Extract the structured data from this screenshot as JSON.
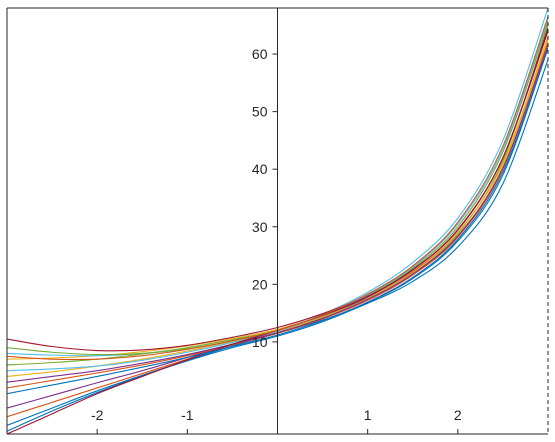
{
  "chart_data": {
    "type": "line",
    "title": "",
    "xlabel": "",
    "ylabel": "",
    "xlim": [
      -3,
      3
    ],
    "ylim": [
      -6,
      68
    ],
    "grid": false,
    "legend": "none",
    "axes_location": "origin",
    "x_ticks": [
      {
        "value": -2,
        "label": "-2"
      },
      {
        "value": -1,
        "label": "-1"
      },
      {
        "value": 1,
        "label": "1"
      },
      {
        "value": 2,
        "label": "2"
      }
    ],
    "y_ticks": [
      {
        "value": 10,
        "label": "10"
      },
      {
        "value": 20,
        "label": "20"
      },
      {
        "value": 30,
        "label": "30"
      },
      {
        "value": 40,
        "label": "40"
      },
      {
        "value": 50,
        "label": "50"
      },
      {
        "value": 60,
        "label": "60"
      }
    ],
    "x": [
      -3,
      -2.5,
      -2,
      -1.5,
      -1,
      -0.5,
      0,
      0.5,
      1,
      1.5,
      2,
      2.5,
      3
    ],
    "series": [
      {
        "color": "#0072bd",
        "values": [
          -5.5,
          -2.0,
          1.2,
          4.1,
          6.7,
          9.0,
          11.0,
          13.5,
          16.8,
          21.0,
          27.5,
          39.0,
          61.0
        ]
      },
      {
        "color": "#d95319",
        "values": [
          -3.0,
          -0.5,
          2.0,
          4.5,
          7.0,
          9.5,
          11.5,
          14.2,
          17.6,
          22.2,
          29.0,
          41.0,
          63.0
        ]
      },
      {
        "color": "#edb120",
        "values": [
          7.0,
          7.2,
          7.6,
          8.3,
          9.3,
          10.6,
          12.2,
          14.6,
          17.7,
          22.0,
          28.5,
          40.5,
          62.5
        ]
      },
      {
        "color": "#7e2f8e",
        "values": [
          -1.5,
          0.7,
          2.9,
          5.0,
          7.3,
          9.6,
          11.8,
          14.4,
          17.8,
          22.5,
          29.5,
          42.0,
          64.0
        ]
      },
      {
        "color": "#77ac30",
        "values": [
          6.0,
          6.4,
          7.0,
          7.9,
          9.0,
          10.4,
          12.0,
          14.4,
          17.5,
          22.0,
          28.8,
          41.5,
          65.0
        ]
      },
      {
        "color": "#4dbeee",
        "values": [
          8.0,
          7.7,
          7.6,
          8.0,
          8.8,
          10.1,
          11.8,
          14.8,
          18.6,
          23.8,
          31.5,
          45.0,
          68.0
        ]
      },
      {
        "color": "#a2142f",
        "values": [
          10.5,
          9.2,
          8.5,
          8.6,
          9.4,
          10.8,
          12.5,
          14.9,
          18.1,
          22.6,
          29.4,
          42.0,
          64.5
        ]
      },
      {
        "color": "#0072bd",
        "values": [
          -4.5,
          -1.5,
          1.5,
          4.2,
          6.8,
          9.3,
          11.5,
          13.8,
          16.7,
          20.5,
          26.5,
          37.5,
          59.0
        ]
      },
      {
        "color": "#d95319",
        "values": [
          2.0,
          3.3,
          4.6,
          6.0,
          7.6,
          9.5,
          11.5,
          14.0,
          17.2,
          21.6,
          28.2,
          40.0,
          62.0
        ]
      },
      {
        "color": "#edb120",
        "values": [
          4.0,
          4.8,
          5.8,
          7.0,
          8.4,
          10.0,
          11.8,
          14.3,
          17.5,
          22.0,
          29.0,
          41.0,
          63.0
        ]
      },
      {
        "color": "#7e2f8e",
        "values": [
          3.0,
          4.0,
          5.0,
          6.3,
          7.8,
          9.6,
          11.6,
          14.1,
          17.4,
          21.8,
          28.4,
          40.2,
          61.5
        ]
      },
      {
        "color": "#77ac30",
        "values": [
          9.0,
          8.2,
          7.8,
          8.0,
          8.8,
          10.2,
          12.0,
          14.6,
          18.0,
          22.8,
          30.0,
          43.0,
          65.5
        ]
      },
      {
        "color": "#4dbeee",
        "values": [
          5.0,
          5.3,
          5.8,
          6.8,
          8.2,
          9.9,
          11.9,
          14.6,
          18.2,
          23.0,
          30.5,
          43.5,
          66.0
        ]
      },
      {
        "color": "#a2142f",
        "values": [
          -6.0,
          -2.5,
          1.0,
          4.0,
          6.9,
          9.6,
          12.0,
          14.6,
          17.9,
          22.5,
          29.5,
          42.0,
          64.0
        ]
      },
      {
        "color": "#0072bd",
        "values": [
          1.0,
          2.5,
          4.0,
          5.6,
          7.3,
          9.2,
          11.2,
          13.7,
          16.9,
          21.2,
          27.8,
          39.5,
          61.0
        ]
      },
      {
        "color": "#d95319",
        "values": [
          7.5,
          7.0,
          7.0,
          7.6,
          8.7,
          10.2,
          12.0,
          14.7,
          18.3,
          23.2,
          30.8,
          44.0,
          66.5
        ]
      }
    ]
  }
}
